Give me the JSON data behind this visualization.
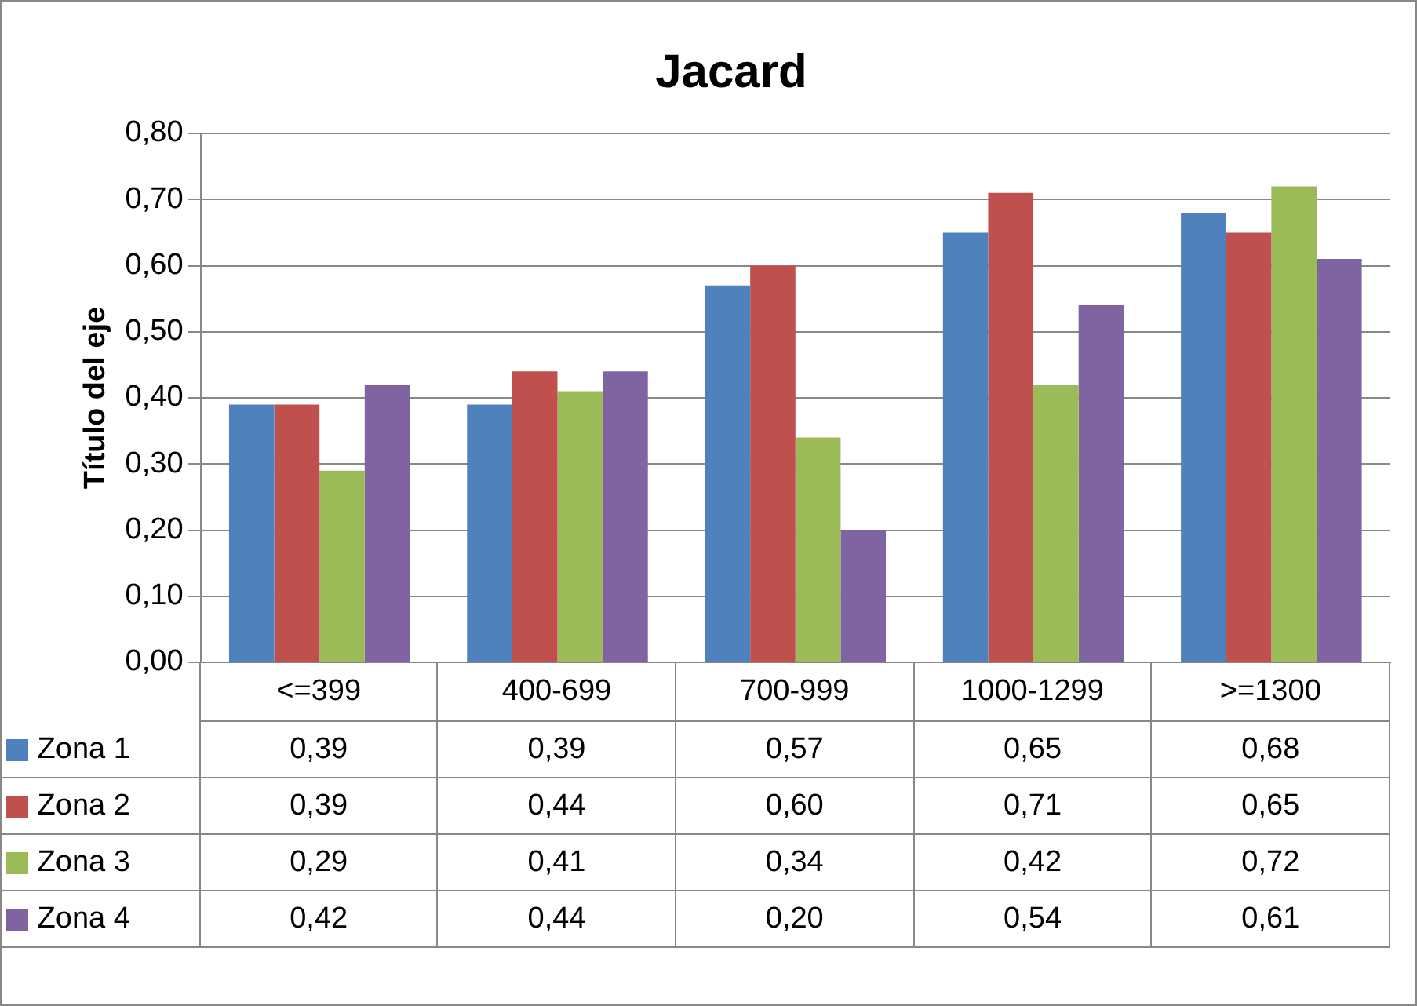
{
  "chart_data": {
    "type": "bar",
    "title": "Jacard",
    "ylabel": "Título del eje",
    "categories": [
      "<=399",
      "400-699",
      "700-999",
      "1000-1299",
      ">=1300"
    ],
    "series": [
      {
        "name": "Zona 1",
        "color": "#4f81bd",
        "values": [
          0.39,
          0.39,
          0.57,
          0.65,
          0.68
        ],
        "value_labels": [
          "0,39",
          "0,39",
          "0,57",
          "0,65",
          "0,68"
        ]
      },
      {
        "name": "Zona 2",
        "color": "#c0504d",
        "values": [
          0.39,
          0.44,
          0.6,
          0.71,
          0.65
        ],
        "value_labels": [
          "0,39",
          "0,44",
          "0,60",
          "0,71",
          "0,65"
        ]
      },
      {
        "name": "Zona 3",
        "color": "#9bbb59",
        "values": [
          0.29,
          0.41,
          0.34,
          0.42,
          0.72
        ],
        "value_labels": [
          "0,29",
          "0,41",
          "0,34",
          "0,42",
          "0,72"
        ]
      },
      {
        "name": "Zona 4",
        "color": "#8064a2",
        "values": [
          0.42,
          0.44,
          0.2,
          0.54,
          0.61
        ],
        "value_labels": [
          "0,42",
          "0,44",
          "0,20",
          "0,54",
          "0,61"
        ]
      }
    ],
    "ylim": [
      0,
      0.8
    ],
    "yticks": [
      {
        "value": 0,
        "label": "0,00"
      },
      {
        "value": 0.1,
        "label": "0,10"
      },
      {
        "value": 0.2,
        "label": "0,20"
      },
      {
        "value": 0.3,
        "label": "0,30"
      },
      {
        "value": 0.4,
        "label": "0,40"
      },
      {
        "value": 0.5,
        "label": "0,50"
      },
      {
        "value": 0.6,
        "label": "0,60"
      },
      {
        "value": 0.7,
        "label": "0,70"
      },
      {
        "value": 0.8,
        "label": "0,80"
      }
    ],
    "grid": "y",
    "legend": "bottom left"
  }
}
